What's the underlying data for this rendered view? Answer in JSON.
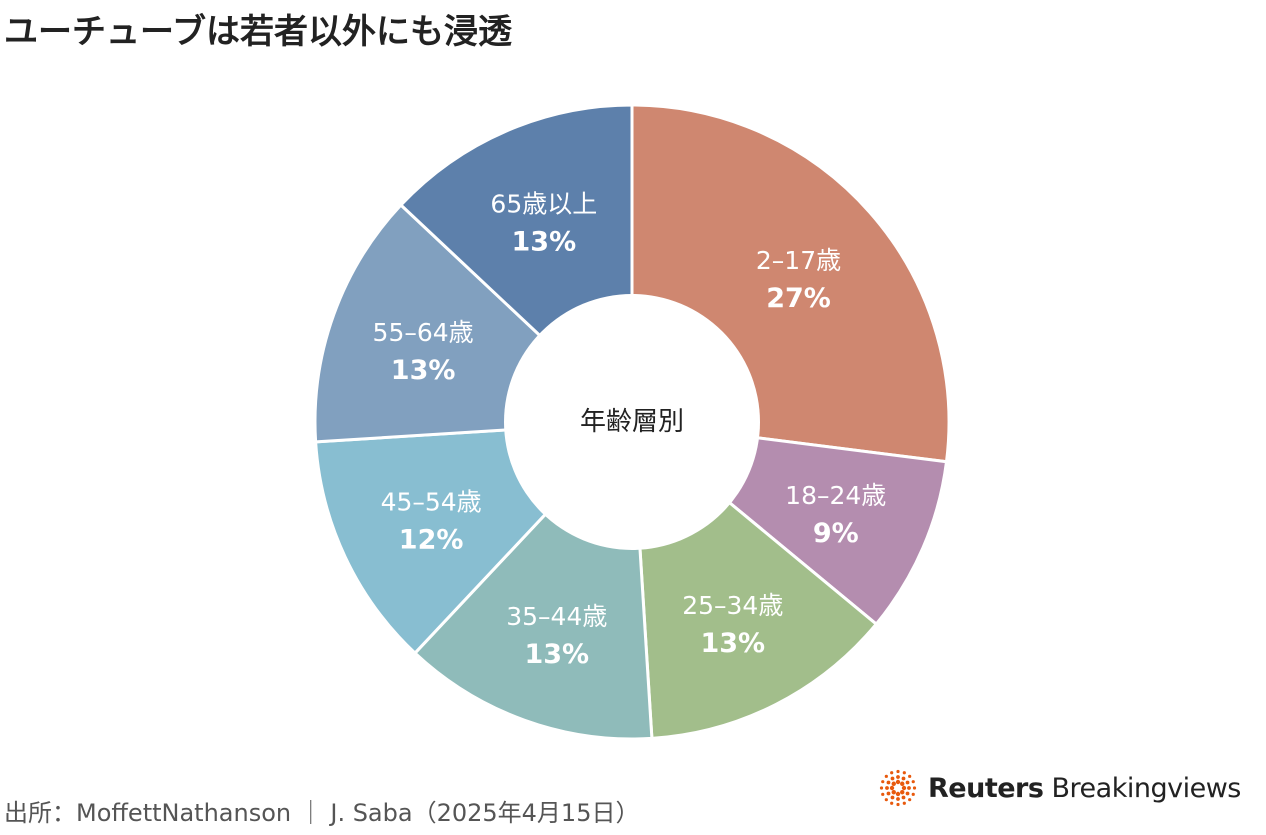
{
  "header": {
    "title": "ユーチューブは若者以外にも浸透"
  },
  "chart_data": {
    "type": "pie",
    "center_label": "年齢層別",
    "categories": [
      "2–17歳",
      "18–24歳",
      "25–34歳",
      "35–44歳",
      "45–54歳",
      "55–64歳",
      "65歳以上"
    ],
    "values": [
      27,
      9,
      13,
      13,
      12,
      13,
      13
    ],
    "value_labels": [
      "27%",
      "9%",
      "13%",
      "13%",
      "12%",
      "13%",
      "13%"
    ],
    "colors": [
      "#CF8770",
      "#B48DAF",
      "#A2BE8B",
      "#8FBBBA",
      "#88BED1",
      "#81A0BF",
      "#5D80AB"
    ]
  },
  "footer": {
    "source": "出所：MoffettNathanson ｜ J. Saba（2025年4月15日）",
    "brand_bold": "Reuters",
    "brand_regular": "Breakingviews"
  }
}
